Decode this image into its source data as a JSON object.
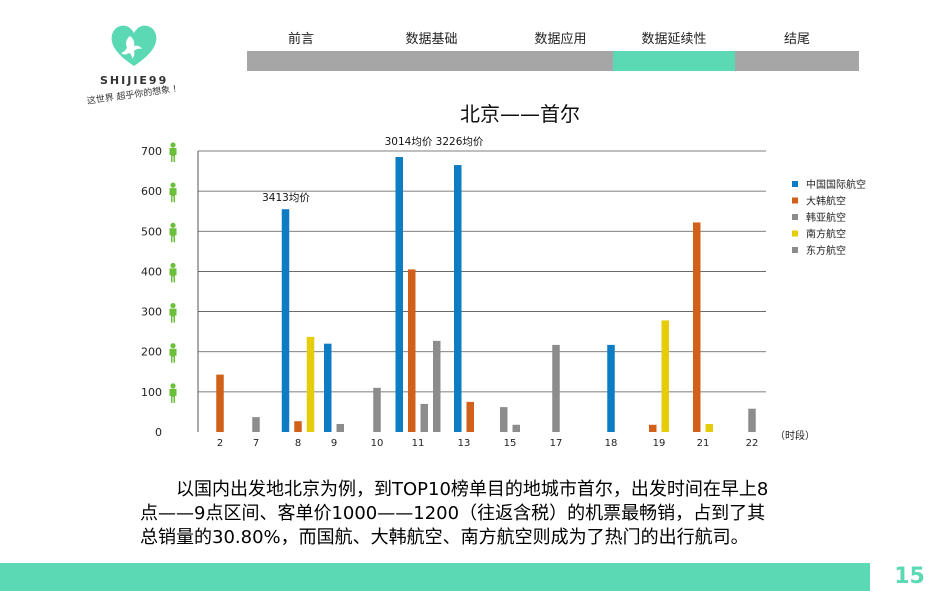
{
  "brand": {
    "name": "SHIJIE99",
    "slogan": "这世界 超乎你的想象 !"
  },
  "nav": {
    "tabs": [
      {
        "label": "前言",
        "active": false
      },
      {
        "label": "数据基础",
        "active": false
      },
      {
        "label": "数据应用",
        "active": false
      },
      {
        "label": "数据延续性",
        "active": true
      },
      {
        "label": "结尾",
        "active": false
      }
    ]
  },
  "chart_data": {
    "type": "bar",
    "title": "北京——首尔",
    "xlabel": "（时段）",
    "ylabel": "",
    "ylim": [
      0,
      700
    ],
    "yticks": [
      0,
      100,
      200,
      300,
      400,
      500,
      600,
      700
    ],
    "categories": [
      "2",
      "7",
      "8",
      "9",
      "10",
      "11",
      "13",
      "15",
      "17",
      "18",
      "19",
      "21",
      "22"
    ],
    "legend_position": "right",
    "grid": true,
    "series": [
      {
        "name": "中国国际航空",
        "color": "#0e7cc3",
        "values": [
          null,
          null,
          555,
          220,
          null,
          685,
          665,
          null,
          null,
          217,
          null,
          null,
          null
        ]
      },
      {
        "name": "大韩航空",
        "color": "#d2601a",
        "values": [
          143,
          null,
          27,
          null,
          null,
          405,
          75,
          null,
          null,
          null,
          18,
          522,
          null
        ]
      },
      {
        "name": "韩亚航空",
        "color": "#8c8c8c",
        "values": [
          null,
          37,
          null,
          20,
          110,
          70,
          null,
          62,
          217,
          null,
          null,
          null,
          58
        ]
      },
      {
        "name": "南方航空",
        "color": "#e5cd0c",
        "values": [
          null,
          null,
          237,
          null,
          null,
          null,
          null,
          null,
          null,
          null,
          278,
          20,
          null
        ]
      },
      {
        "name": "东方航空",
        "color": "#8c8c8c",
        "values": [
          null,
          null,
          null,
          null,
          null,
          227,
          null,
          18,
          null,
          null,
          null,
          null,
          null
        ]
      }
    ],
    "annotations": [
      {
        "text": "3413均价",
        "category": "8"
      },
      {
        "text": "3014均价 3226均价",
        "category": "11"
      }
    ]
  },
  "caption": {
    "lines": [
      "以国内出发地北京为例，到TOP10榜单目的地城市首尔，出发时间在早上8",
      "点——9点区间、客单价1000——1200（往返含税）的机票最畅销，占到了其",
      "总销量的30.80%，而国航、大韩航空、南方航空则成为了热门的出行航司。"
    ]
  },
  "page_number": "15"
}
